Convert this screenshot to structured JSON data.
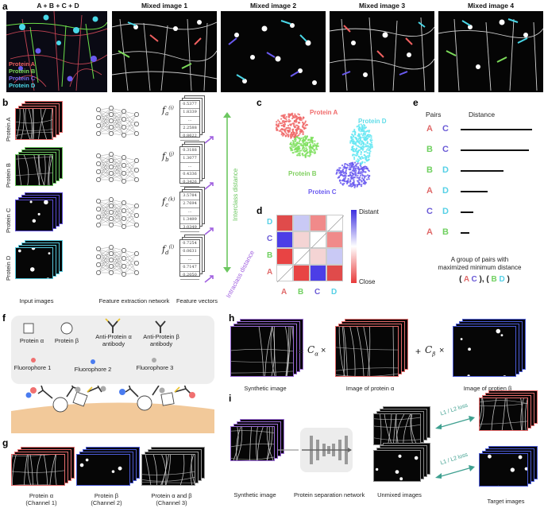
{
  "panel_a": {
    "label": "a",
    "titles": [
      "A + B + C + D",
      "Mixed image 1",
      "Mixed image 2",
      "Mixed image 3",
      "Mixed image 4"
    ],
    "legend": [
      {
        "text": "Protein A",
        "color": "#f06060"
      },
      {
        "text": "Protein B",
        "color": "#7ddc5a"
      },
      {
        "text": "Protein C",
        "color": "#7b6cf2"
      },
      {
        "text": "Protein D",
        "color": "#4ad8e8"
      }
    ]
  },
  "panel_b": {
    "label": "b",
    "rows": [
      "Protein A",
      "Protein B",
      "Protein C",
      "Protein D"
    ],
    "row_colors": [
      "#e86a6a",
      "#6cc760",
      "#5a4ad6",
      "#56c8dc"
    ],
    "feature_symbols": [
      {
        "base": "f",
        "sub": "a",
        "sup": "(i)"
      },
      {
        "base": "f",
        "sub": "b",
        "sup": "(j)"
      },
      {
        "base": "f",
        "sub": "c",
        "sup": "(k)"
      },
      {
        "base": "f",
        "sub": "d",
        "sup": "(l)"
      }
    ],
    "vectors": [
      [
        "0.5377",
        "1.8339",
        "...",
        "2.2588",
        "0.8622"
      ],
      [
        "0.3188",
        "1.3077",
        "...",
        "0.4336",
        "0.3426"
      ],
      [
        "3.5784",
        "2.7694",
        "...",
        "1.3499",
        "3.0349"
      ],
      [
        "0.7254",
        "0.0631",
        "...",
        "0.7147",
        "0.2050"
      ]
    ],
    "interclass": "Interclass distance",
    "intraclass": "Intraclass distance",
    "captions": [
      "Input images",
      "Feature extraction network",
      "Feature vectors"
    ]
  },
  "panel_c": {
    "label": "c",
    "clusters": [
      {
        "name": "Protein A",
        "color": "#f06a6a"
      },
      {
        "name": "Protein B",
        "color": "#80e060"
      },
      {
        "name": "Protein C",
        "color": "#6a5af0"
      },
      {
        "name": "Protein D",
        "color": "#60e6f2"
      }
    ]
  },
  "panel_d": {
    "label": "d",
    "rows": [
      "D",
      "C",
      "B",
      "A"
    ],
    "cols": [
      "A",
      "B",
      "C",
      "D"
    ],
    "row_colors": [
      "#56d0e6",
      "#6a5ad6",
      "#70d060",
      "#e06a6a"
    ],
    "col_colors": [
      "#e06a6a",
      "#70d060",
      "#6a5ad6",
      "#56d0e6"
    ],
    "scale_top": "Distant",
    "scale_bottom": "Close",
    "colors_grid": [
      [
        "#e04b4b",
        "#c9c9f5",
        "#f08a8a",
        "diag"
      ],
      [
        "#4c3ee6",
        "#f4d4d4",
        "diag",
        "#f08a8a"
      ],
      [
        "#e84444",
        "diag",
        "#f4d4d4",
        "#c9c9f5"
      ],
      [
        "diag",
        "#e84444",
        "#4c3ee6",
        "#e04b4b"
      ]
    ]
  },
  "panel_e": {
    "label": "e",
    "col_pairs": "Pairs",
    "col_distance": "Distance",
    "pairs": [
      {
        "a": "A",
        "b": "C",
        "ca": "#e06a6a",
        "cb": "#6a5ad6",
        "dist": 1.0
      },
      {
        "a": "B",
        "b": "C",
        "ca": "#70d060",
        "cb": "#6a5ad6",
        "dist": 0.95
      },
      {
        "a": "B",
        "b": "D",
        "ca": "#70d060",
        "cb": "#56d0e6",
        "dist": 0.6
      },
      {
        "a": "A",
        "b": "D",
        "ca": "#e06a6a",
        "cb": "#56d0e6",
        "dist": 0.38
      },
      {
        "a": "C",
        "b": "D",
        "ca": "#6a5ad6",
        "cb": "#56d0e6",
        "dist": 0.18
      },
      {
        "a": "A",
        "b": "B",
        "ca": "#e06a6a",
        "cb": "#70d060",
        "dist": 0.12
      }
    ],
    "caption_line1": "A group of pairs with",
    "caption_line2": "maximized minimum distance",
    "group": [
      {
        "a": "A",
        "b": "C",
        "ca": "#e06a6a",
        "cb": "#6a5ad6"
      },
      {
        "a": "B",
        "b": "D",
        "ca": "#70d060",
        "cb": "#56d0e6"
      }
    ]
  },
  "panel_f": {
    "label": "f",
    "items": [
      "Protein α",
      "Protein β",
      "Anti-Protein α antibody",
      "Anti-Protein β antibody"
    ],
    "fluoro": [
      {
        "text": "Fluorophore 1",
        "color": "#f07070"
      },
      {
        "text": "Fluorophore 2",
        "color": "#4a7cf0"
      },
      {
        "text": "Fluorophore 3",
        "color": "#aaaaaa"
      }
    ]
  },
  "panel_g": {
    "label": "g",
    "items": [
      {
        "line1": "Protein α",
        "line2": "(Channel 1)",
        "color": "#e46a6a"
      },
      {
        "line1": "Protein β",
        "line2": "(Channel 2)",
        "color": "#4a5ad6"
      },
      {
        "line1": "Protein α and β",
        "line2": "(Channel 3)",
        "color": "#999999"
      }
    ]
  },
  "panel_h": {
    "label": "h",
    "captions": [
      "Synthetic image",
      "Image of protein α",
      "Image of protien β"
    ],
    "eq": "=",
    "plus": "+",
    "times": "×",
    "coef_a": "C",
    "coef_a_sub": "α",
    "coef_b": "C",
    "coef_b_sub": "β"
  },
  "panel_i": {
    "label": "i",
    "captions": [
      "Synthetic image",
      "Protein separation network",
      "Unmixed images",
      "Target images"
    ],
    "loss": "L1 / L2 loss"
  }
}
